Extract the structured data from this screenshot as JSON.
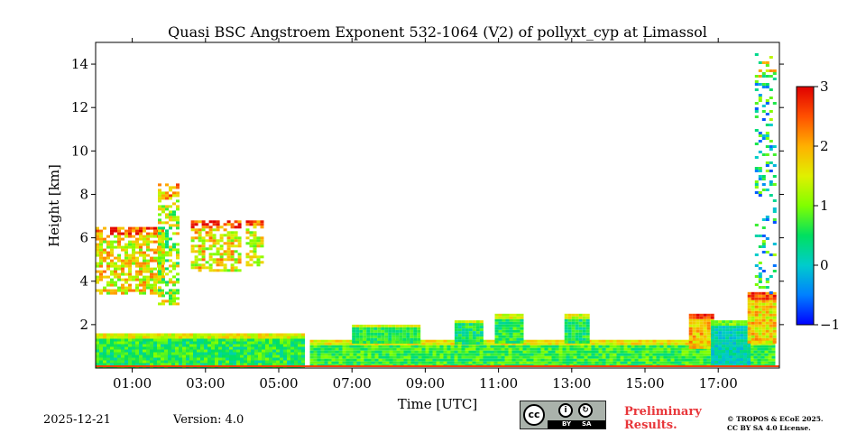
{
  "chart_data": {
    "type": "heatmap",
    "title": "Quasi BSC Angstroem Exponent 532-1064 (V2) of pollyxt_cyp at Limassol",
    "xlabel": "Time [UTC]",
    "ylabel": "Height [km]",
    "xlim": [
      0,
      18.67
    ],
    "ylim": [
      0,
      15
    ],
    "x_ticks": [
      {
        "value": 1,
        "label": "01:00"
      },
      {
        "value": 3,
        "label": "03:00"
      },
      {
        "value": 5,
        "label": "05:00"
      },
      {
        "value": 7,
        "label": "07:00"
      },
      {
        "value": 9,
        "label": "09:00"
      },
      {
        "value": 11,
        "label": "11:00"
      },
      {
        "value": 13,
        "label": "13:00"
      },
      {
        "value": 15,
        "label": "15:00"
      },
      {
        "value": 17,
        "label": "17:00"
      }
    ],
    "y_ticks": [
      {
        "value": 2,
        "label": "2"
      },
      {
        "value": 4,
        "label": "4"
      },
      {
        "value": 6,
        "label": "6"
      },
      {
        "value": 8,
        "label": "8"
      },
      {
        "value": 10,
        "label": "10"
      },
      {
        "value": 12,
        "label": "12"
      },
      {
        "value": 14,
        "label": "14"
      }
    ],
    "colorbar": {
      "range": [
        -1,
        3
      ],
      "ticks": [
        {
          "value": -1,
          "label": "−1"
        },
        {
          "value": 0,
          "label": "0"
        },
        {
          "value": 1,
          "label": "1"
        },
        {
          "value": 2,
          "label": "2"
        },
        {
          "value": 3,
          "label": "3"
        }
      ],
      "colormap": "jet"
    },
    "regions": [
      {
        "t0": 0.0,
        "t1": 5.65,
        "h0": 0.1,
        "h1": 1.6,
        "v": 0.6,
        "spread": 0.45
      },
      {
        "t0": 5.85,
        "t1": 18.5,
        "h0": 0.1,
        "h1": 1.3,
        "v": 0.7,
        "spread": 0.4
      },
      {
        "t0": 0.0,
        "t1": 1.8,
        "h0": 3.5,
        "h1": 6.5,
        "v": 1.6,
        "spread": 0.8
      },
      {
        "t0": 1.7,
        "t1": 2.2,
        "h0": 3.0,
        "h1": 8.5,
        "v": 1.2,
        "spread": 0.9
      },
      {
        "t0": 2.6,
        "t1": 3.9,
        "h0": 4.5,
        "h1": 6.8,
        "v": 1.6,
        "spread": 0.8
      },
      {
        "t0": 4.1,
        "t1": 4.5,
        "h0": 4.8,
        "h1": 6.8,
        "v": 1.5,
        "spread": 0.7
      },
      {
        "t0": 7.0,
        "t1": 8.8,
        "h0": 1.2,
        "h1": 2.0,
        "v": 0.6,
        "spread": 0.3
      },
      {
        "t0": 9.8,
        "t1": 10.5,
        "h0": 1.2,
        "h1": 2.2,
        "v": 0.5,
        "spread": 0.4
      },
      {
        "t0": 10.9,
        "t1": 11.6,
        "h0": 1.2,
        "h1": 2.5,
        "v": 0.6,
        "spread": 0.4
      },
      {
        "t0": 12.8,
        "t1": 13.4,
        "h0": 1.2,
        "h1": 2.5,
        "v": 0.5,
        "spread": 0.4
      },
      {
        "t0": 16.2,
        "t1": 16.8,
        "h0": 1.0,
        "h1": 2.5,
        "v": 1.9,
        "spread": 0.5
      },
      {
        "t0": 16.8,
        "t1": 17.8,
        "h0": 0.2,
        "h1": 2.2,
        "v": 0.1,
        "spread": 0.3
      },
      {
        "t0": 17.8,
        "t1": 18.5,
        "h0": 1.2,
        "h1": 3.5,
        "v": 1.7,
        "spread": 0.6
      },
      {
        "t0": 18.0,
        "t1": 18.5,
        "h0": 3.5,
        "h1": 14.5,
        "v": 0.3,
        "spread": 1.0
      }
    ]
  },
  "footer": {
    "date": "2025-12-21",
    "version": "Version: 4.0",
    "preliminary_line1": "Preliminary",
    "preliminary_line2": "Results.",
    "copyright_line1": "© TROPOS & ECoE 2025.",
    "copyright_line2": "CC BY SA 4.0 License.",
    "cc_label": "cc",
    "by_label": "BY",
    "sa_label": "SA"
  },
  "colors": {
    "preliminary": "#e8363a",
    "license_box": "#aab2ab"
  }
}
